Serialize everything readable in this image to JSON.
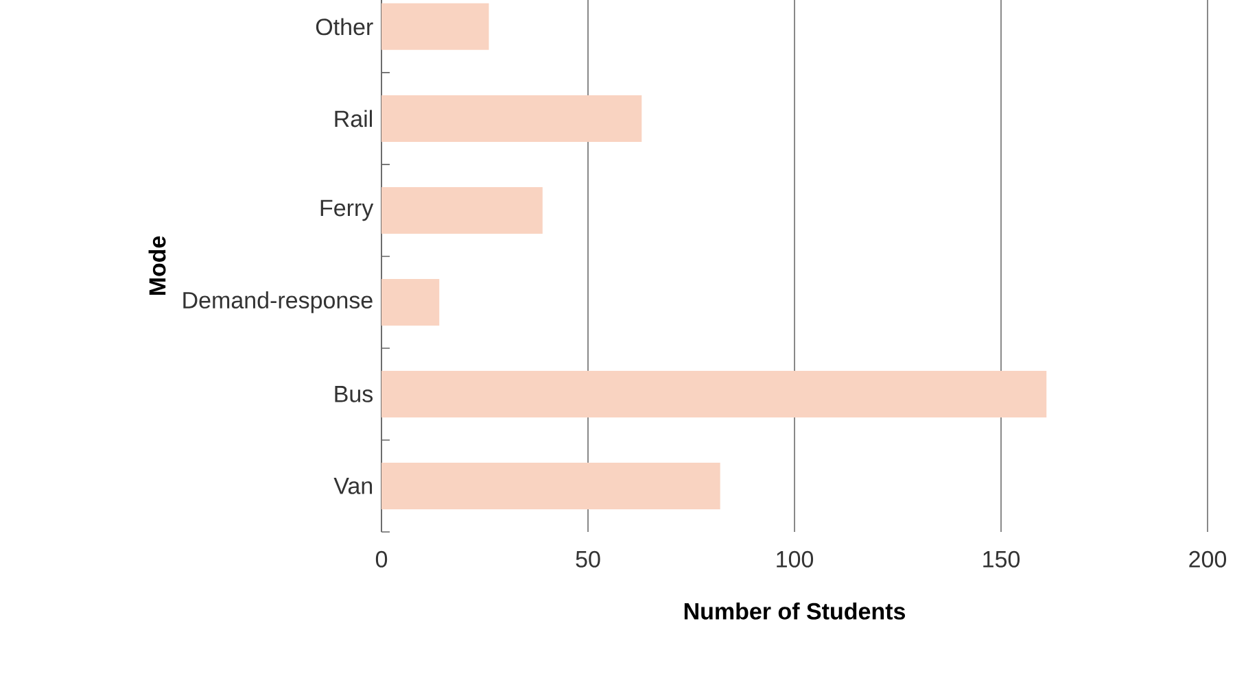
{
  "chart_data": {
    "type": "bar",
    "orientation": "horizontal",
    "xlabel": "Number of Students",
    "ylabel": "Mode",
    "categories": [
      "Other",
      "Rail",
      "Ferry",
      "Demand-response",
      "Bus",
      "Van"
    ],
    "values": [
      26,
      63,
      39,
      14,
      161,
      82
    ],
    "color": "#f9d3c1",
    "xlim": [
      0,
      200
    ],
    "xticks": [
      0,
      50,
      100,
      150,
      200
    ],
    "grid": "x"
  }
}
